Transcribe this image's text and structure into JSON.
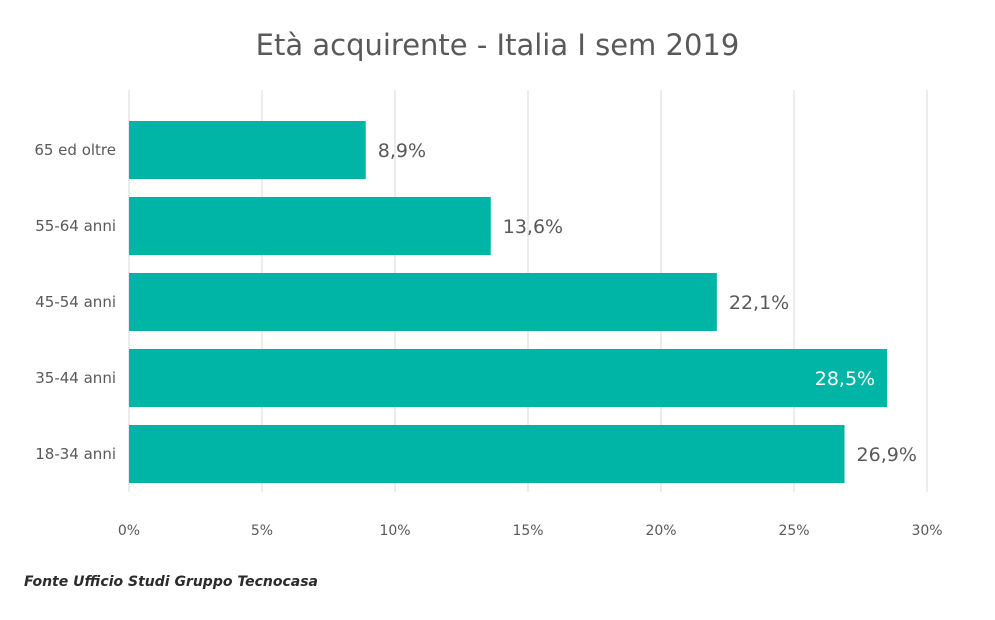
{
  "chart_data": {
    "type": "bar",
    "orientation": "horizontal",
    "title": "Età acquirente - Italia I sem 2019",
    "categories": [
      "65 ed oltre",
      "55-64 anni",
      "45-54 anni",
      "35-44 anni",
      "18-34 anni"
    ],
    "values": [
      8.9,
      13.6,
      22.1,
      28.5,
      26.9
    ],
    "data_labels": [
      "8,9%",
      "13,6%",
      "22,1%",
      "28,5%",
      "26,9%"
    ],
    "x_ticks": [
      "0%",
      "5%",
      "10%",
      "15%",
      "20%",
      "25%",
      "30%"
    ],
    "xlim": [
      0,
      30
    ],
    "grid": "vertical",
    "bar_color": "#00b5a5",
    "label_color": "#595959",
    "label_color_inside": "#ffffff"
  },
  "source": "Fonte Ufficio Studi Gruppo Tecnocasa"
}
